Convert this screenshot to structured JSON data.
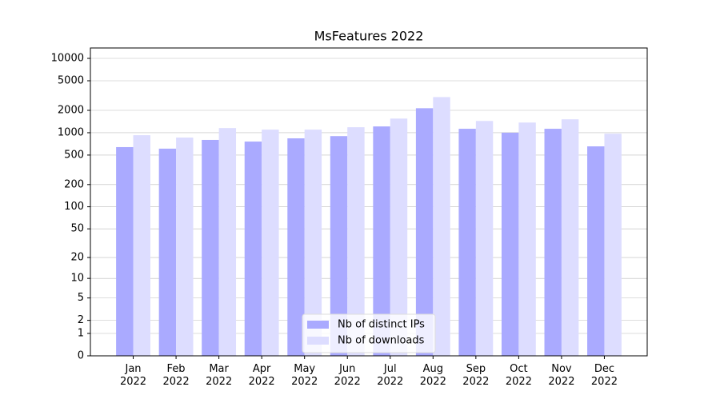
{
  "chart_data": {
    "type": "bar",
    "title": "MsFeatures 2022",
    "categories": [
      "Jan 2022",
      "Feb 2022",
      "Mar 2022",
      "Apr 2022",
      "May 2022",
      "Jun 2022",
      "Jul 2022",
      "Aug 2022",
      "Sep 2022",
      "Oct 2022",
      "Nov 2022",
      "Dec 2022"
    ],
    "series": [
      {
        "name": "Nb of distinct IPs",
        "color": "#aaaaff",
        "values": [
          640,
          610,
          800,
          760,
          840,
          900,
          1215,
          2135,
          1130,
          1000,
          1130,
          655
        ]
      },
      {
        "name": "Nb of downloads",
        "color": "#ddddff",
        "values": [
          925,
          860,
          1155,
          1100,
          1100,
          1185,
          1550,
          3015,
          1440,
          1370,
          1515,
          970
        ]
      }
    ],
    "yscale": "log1p",
    "ylim": [
      0,
      13800
    ],
    "yticks": [
      0,
      1,
      2,
      5,
      10,
      20,
      50,
      100,
      200,
      500,
      1000,
      2000,
      5000,
      10000
    ],
    "grid": true,
    "legend": "lower center"
  }
}
